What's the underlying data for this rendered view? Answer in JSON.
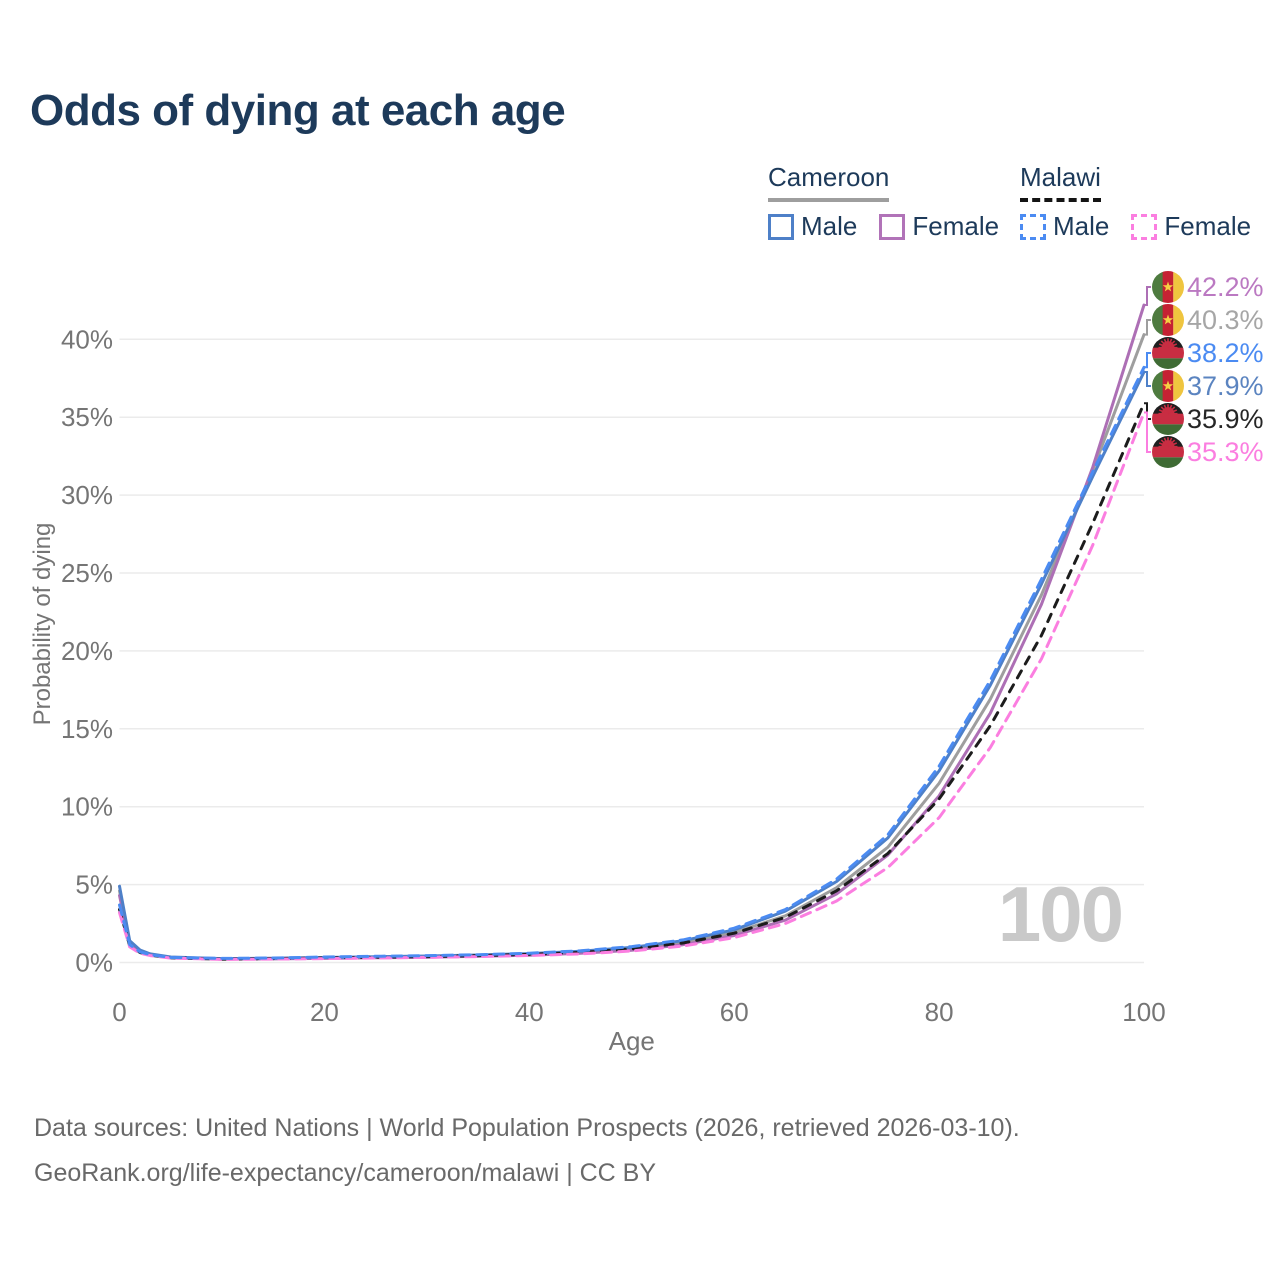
{
  "title": "Odds of dying at each age",
  "legend": {
    "groups": [
      {
        "label": "Cameroon",
        "line_style": "solid",
        "line_color": "#9e9e9e",
        "items": [
          {
            "label": "Male",
            "color": "#4e80c8",
            "dash": false
          },
          {
            "label": "Female",
            "color": "#b173b8",
            "dash": false
          }
        ]
      },
      {
        "label": "Malawi",
        "line_style": "dashed",
        "line_color": "#141414",
        "items": [
          {
            "label": "Male",
            "color": "#4b8bf2",
            "dash": true
          },
          {
            "label": "Female",
            "color": "#fb7ee0",
            "dash": true
          }
        ]
      }
    ]
  },
  "chart_data": {
    "type": "line",
    "title": "Odds of dying at each age",
    "xlabel": "Age",
    "ylabel": "Probability of dying",
    "xlim": [
      0,
      100
    ],
    "ylim_percent": [
      0,
      44
    ],
    "x_ticks": [
      0,
      20,
      40,
      60,
      80,
      100
    ],
    "y_tick_labels": [
      "0%",
      "5%",
      "10%",
      "15%",
      "20%",
      "25%",
      "30%",
      "35%",
      "40%"
    ],
    "grid": "horizontal",
    "legend_position": "top-right",
    "watermark": "100",
    "ages": [
      0,
      1,
      2,
      3,
      5,
      10,
      15,
      20,
      25,
      30,
      35,
      40,
      45,
      50,
      55,
      60,
      65,
      70,
      75,
      80,
      85,
      90,
      95,
      100
    ],
    "series": [
      {
        "id": "cameroon-both",
        "name": "Cameroon",
        "country": "Cameroon",
        "sex": "Both",
        "color": "#9e9e9e",
        "dash": false,
        "flag": "cameroon",
        "end_label": "40.3%",
        "end_label_color": "#a6a6a6",
        "values": [
          4.6,
          1.3,
          0.75,
          0.52,
          0.33,
          0.23,
          0.25,
          0.29,
          0.33,
          0.38,
          0.44,
          0.52,
          0.65,
          0.88,
          1.27,
          1.92,
          3.0,
          4.8,
          7.4,
          11.5,
          16.9,
          23.6,
          31.6,
          40.3
        ]
      },
      {
        "id": "cameroon-female",
        "name": "Cameroon Female",
        "country": "Cameroon",
        "sex": "Female",
        "color": "#ad6fb5",
        "dash": false,
        "flag": "cameroon",
        "end_label": "42.2%",
        "end_label_color": "#bb79c2",
        "values": [
          4.3,
          1.2,
          0.7,
          0.5,
          0.3,
          0.22,
          0.23,
          0.26,
          0.3,
          0.34,
          0.4,
          0.47,
          0.59,
          0.79,
          1.14,
          1.73,
          2.72,
          4.4,
          6.9,
          10.7,
          16.0,
          23.0,
          31.8,
          42.2
        ]
      },
      {
        "id": "cameroon-male",
        "name": "Cameroon Male",
        "country": "Cameroon",
        "sex": "Male",
        "color": "#4e80c8",
        "dash": false,
        "flag": "cameroon",
        "end_label": "37.9%",
        "end_label_color": "#5b84c0",
        "values": [
          4.9,
          1.4,
          0.8,
          0.55,
          0.35,
          0.25,
          0.27,
          0.32,
          0.37,
          0.42,
          0.48,
          0.57,
          0.72,
          0.97,
          1.4,
          2.1,
          3.3,
          5.2,
          8.0,
          12.3,
          17.8,
          24.3,
          31.2,
          37.9
        ]
      },
      {
        "id": "malawi-both",
        "name": "Malawi",
        "country": "Malawi",
        "sex": "Both",
        "color": "#1c1c1c",
        "dash": true,
        "flag": "malawi",
        "end_label": "35.9%",
        "end_label_color": "#262626",
        "values": [
          3.4,
          1.08,
          0.64,
          0.47,
          0.3,
          0.22,
          0.25,
          0.29,
          0.34,
          0.38,
          0.44,
          0.52,
          0.64,
          0.87,
          1.25,
          1.88,
          2.9,
          4.6,
          7.0,
          10.5,
          15.2,
          21.0,
          28.2,
          35.9
        ]
      },
      {
        "id": "malawi-female",
        "name": "Malawi Female",
        "country": "Malawi",
        "sex": "Female",
        "color": "#fb7ee0",
        "dash": true,
        "flag": "malawi",
        "end_label": "35.3%",
        "end_label_color": "#fb7ee0",
        "values": [
          3.2,
          1.0,
          0.6,
          0.44,
          0.28,
          0.2,
          0.22,
          0.25,
          0.29,
          0.33,
          0.38,
          0.45,
          0.55,
          0.74,
          1.06,
          1.6,
          2.5,
          3.95,
          6.1,
          9.3,
          13.8,
          19.5,
          26.8,
          35.3
        ]
      },
      {
        "id": "malawi-male",
        "name": "Malawi Male",
        "country": "Malawi",
        "sex": "Male",
        "color": "#4b8bf2",
        "dash": true,
        "flag": "malawi",
        "end_label": "38.2%",
        "end_label_color": "#4b8bf2",
        "values": [
          3.7,
          1.15,
          0.68,
          0.5,
          0.32,
          0.26,
          0.29,
          0.35,
          0.4,
          0.44,
          0.5,
          0.6,
          0.75,
          1.02,
          1.45,
          2.2,
          3.4,
          5.35,
          8.2,
          12.6,
          18.1,
          24.6,
          31.5,
          38.2
        ]
      }
    ]
  },
  "footer": {
    "line1": "Data sources: United Nations | World Population Prospects (2026, retrieved 2026-03-10).",
    "line2": "GeoRank.org/life-expectancy/cameroon/malawi | CC BY"
  }
}
